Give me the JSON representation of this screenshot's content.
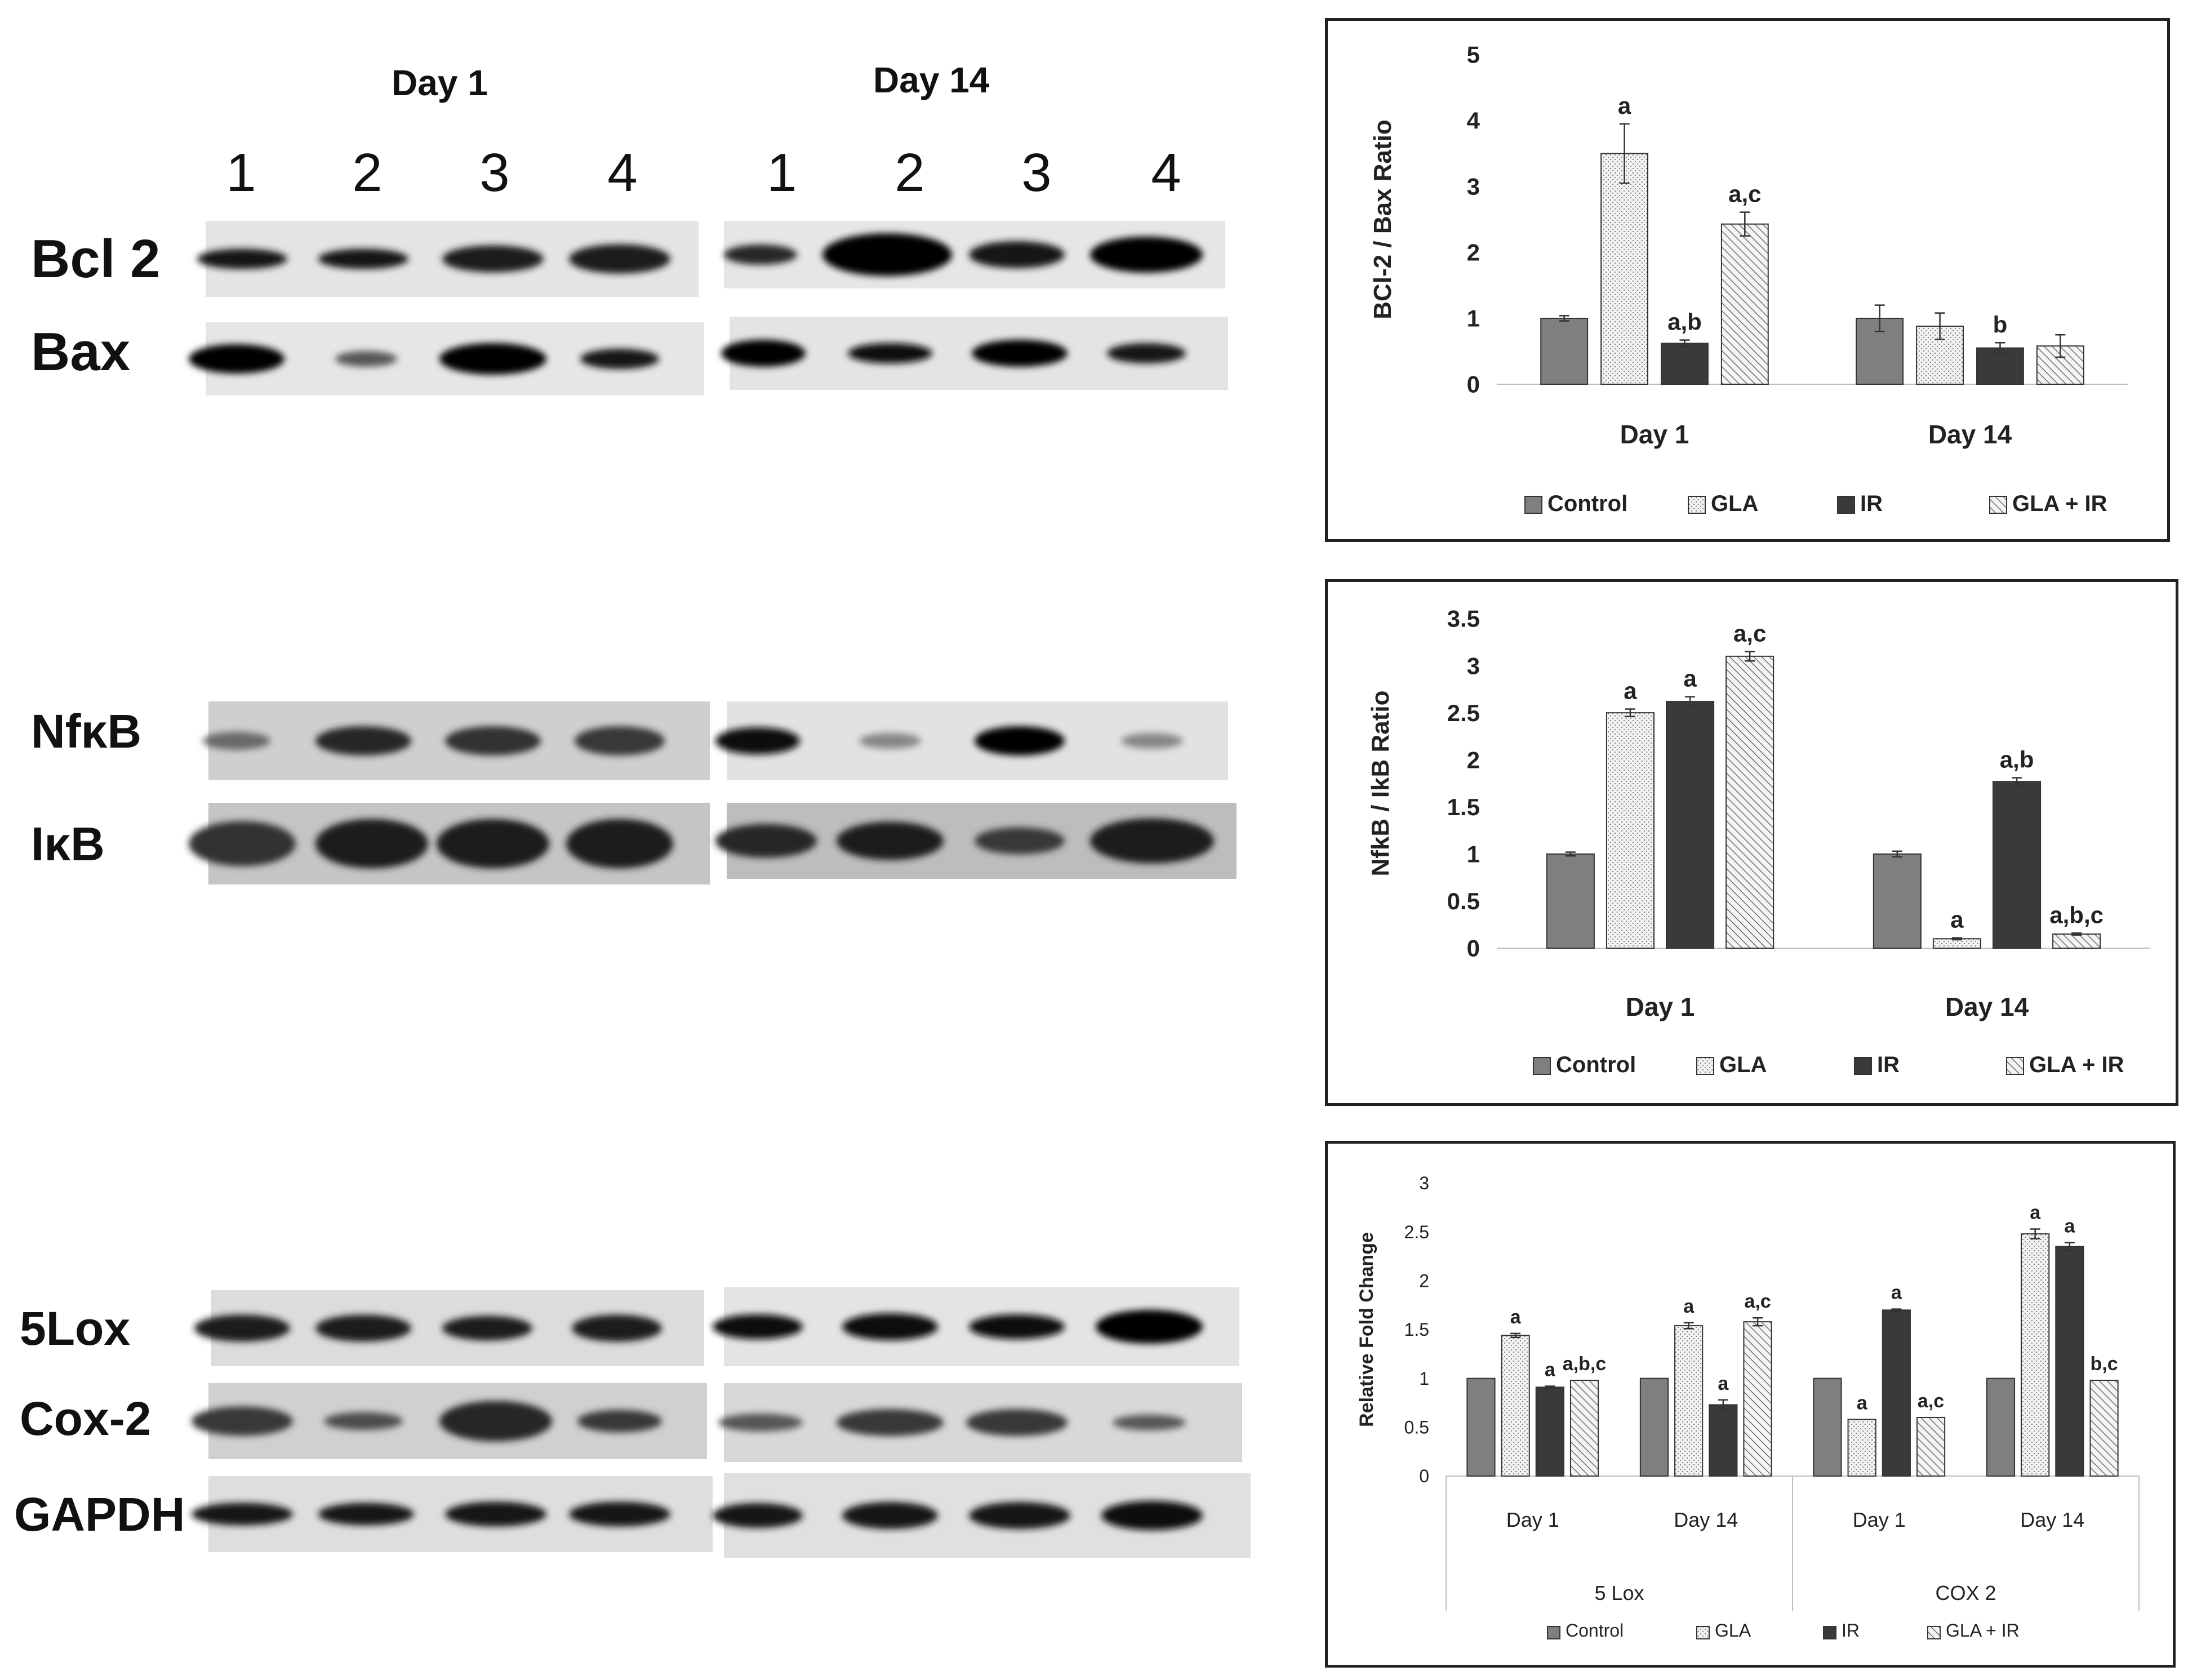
{
  "blots": {
    "day_titles": [
      "Day 1",
      "Day 14"
    ],
    "lane_numbers": [
      "1",
      "2",
      "3",
      "4"
    ],
    "labels": [
      "Bcl 2",
      "Bax",
      "NfκB",
      "IκB",
      "5Lox",
      "Cox-2",
      "GAPDH"
    ]
  },
  "colors": {
    "control": "#7f7f7f",
    "gla": "#f2f2f2",
    "ir": "#3a3a3a",
    "gla_ir": "#f4f4f4"
  },
  "chart_data": [
    {
      "type": "bar",
      "title": "",
      "ylabel": "BCl-2 / Bax Ratio",
      "xlabel": "",
      "ylim": [
        0,
        5
      ],
      "yticks": [
        "0",
        "1",
        "2",
        "3",
        "4",
        "5"
      ],
      "categories": [
        "Day 1",
        "Day 14"
      ],
      "legend_position": "bottom",
      "series": [
        {
          "name": "Control",
          "values": [
            1.0,
            1.0
          ],
          "errors": [
            0.04,
            0.2
          ],
          "labels": [
            "",
            ""
          ]
        },
        {
          "name": "GLA",
          "values": [
            3.5,
            0.88
          ],
          "errors": [
            0.45,
            0.2
          ],
          "labels": [
            "a",
            ""
          ]
        },
        {
          "name": "IR",
          "values": [
            0.62,
            0.55
          ],
          "errors": [
            0.05,
            0.08
          ],
          "labels": [
            "a,b",
            "b"
          ]
        },
        {
          "name": "GLA + IR",
          "values": [
            2.43,
            0.58
          ],
          "errors": [
            0.18,
            0.17
          ],
          "labels": [
            "a,c",
            ""
          ]
        }
      ]
    },
    {
      "type": "bar",
      "title": "",
      "ylabel": "NfkB / IkB Ratio",
      "xlabel": "",
      "ylim": [
        0,
        3.5
      ],
      "yticks": [
        "0",
        "0.5",
        "1",
        "1.5",
        "2",
        "2.5",
        "3",
        "3.5"
      ],
      "categories": [
        "Day 1",
        "Day 14"
      ],
      "legend_position": "bottom",
      "series": [
        {
          "name": "Control",
          "values": [
            1.0,
            1.0
          ],
          "errors": [
            0.02,
            0.03
          ],
          "labels": [
            "",
            ""
          ]
        },
        {
          "name": "GLA",
          "values": [
            2.5,
            0.1
          ],
          "errors": [
            0.04,
            0.01
          ],
          "labels": [
            "a",
            "a"
          ]
        },
        {
          "name": "IR",
          "values": [
            2.62,
            1.77
          ],
          "errors": [
            0.05,
            0.04
          ],
          "labels": [
            "a",
            "a,b"
          ]
        },
        {
          "name": "GLA + IR",
          "values": [
            3.1,
            0.15
          ],
          "errors": [
            0.05,
            0.01
          ],
          "labels": [
            "a,c",
            "a,b,c"
          ]
        }
      ]
    },
    {
      "type": "bar",
      "title": "",
      "ylabel": "Relative Fold Change",
      "xlabel": "",
      "ylim": [
        0,
        3
      ],
      "yticks": [
        "0",
        "0.5",
        "1",
        "1.5",
        "2",
        "2.5",
        "3"
      ],
      "categories": [
        "Day 1",
        "Day 14",
        "Day 1",
        "Day 14"
      ],
      "groups": [
        "5 Lox",
        "COX 2"
      ],
      "legend_position": "bottom",
      "series": [
        {
          "name": "Control",
          "values": [
            1.0,
            1.0,
            1.0,
            1.0
          ],
          "errors": [
            0,
            0,
            0,
            0
          ],
          "labels": [
            "",
            "",
            "",
            ""
          ]
        },
        {
          "name": "GLA",
          "values": [
            1.44,
            1.54,
            0.58,
            2.48
          ],
          "errors": [
            0.02,
            0.03,
            0,
            0.05
          ],
          "labels": [
            "a",
            "a",
            "a",
            "a"
          ]
        },
        {
          "name": "IR",
          "values": [
            0.91,
            0.73,
            1.7,
            2.35
          ],
          "errors": [
            0.01,
            0.05,
            0.01,
            0.04
          ],
          "labels": [
            "a",
            "a",
            "a",
            "a"
          ]
        },
        {
          "name": "GLA + IR",
          "values": [
            0.98,
            1.58,
            0.6,
            0.98
          ],
          "errors": [
            0,
            0.04,
            0,
            0
          ],
          "labels": [
            "a,b,c",
            "a,c",
            "a,c",
            "b,c"
          ]
        }
      ]
    }
  ]
}
